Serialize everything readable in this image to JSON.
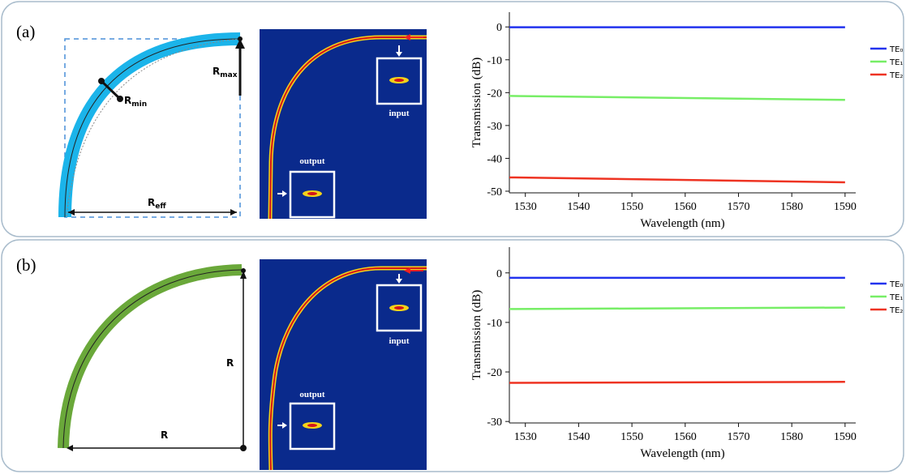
{
  "figure": {
    "panels": [
      {
        "label": "(a)",
        "diagram": {
          "r_max": {
            "base": "R",
            "sub": "max"
          },
          "r_min": {
            "base": "R",
            "sub": "min"
          },
          "r_eff": {
            "base": "R",
            "sub": "eff"
          }
        },
        "field": {
          "input": "input",
          "output": "output"
        }
      },
      {
        "label": "(b)",
        "diagram": {
          "r_vertical": "R",
          "r_horizontal": "R"
        },
        "field": {
          "input": "input",
          "output": "output"
        }
      }
    ]
  },
  "chart_data": [
    {
      "type": "line",
      "x_label": "Wavelength (nm)",
      "y_label": "Transmission (dB)",
      "x": [
        1527,
        1590
      ],
      "series": [
        {
          "name": "TE₀",
          "color": "#2233ee",
          "values": [
            -0.1,
            -0.1
          ]
        },
        {
          "name": "TE₁",
          "color": "#77ee66",
          "values": [
            -21.0,
            -22.2
          ]
        },
        {
          "name": "TE₂",
          "color": "#ee3322",
          "values": [
            -45.8,
            -47.3
          ]
        }
      ],
      "xlim": [
        1527,
        1592
      ],
      "ylim": [
        -50.5,
        4.5
      ],
      "xticks": [
        1530,
        1540,
        1550,
        1560,
        1570,
        1580,
        1590
      ],
      "yticks": [
        0,
        -10,
        -20,
        -30,
        -40,
        -50
      ],
      "legend": "upper right"
    },
    {
      "type": "line",
      "x_label": "Wavelength (nm)",
      "y_label": "Transmission (dB)",
      "x": [
        1527,
        1590
      ],
      "series": [
        {
          "name": "TE₀",
          "color": "#2233ee",
          "values": [
            -1.0,
            -1.0
          ]
        },
        {
          "name": "TE₁",
          "color": "#77ee66",
          "values": [
            -7.3,
            -7.0
          ]
        },
        {
          "name": "TE₂",
          "color": "#ee3322",
          "values": [
            -22.2,
            -22.0
          ]
        }
      ],
      "xlim": [
        1527,
        1592
      ],
      "ylim": [
        -30.3,
        5.2
      ],
      "xticks": [
        1530,
        1540,
        1550,
        1560,
        1570,
        1580,
        1590
      ],
      "yticks": [
        0,
        -10,
        -20,
        -30
      ],
      "legend": "upper right"
    }
  ]
}
